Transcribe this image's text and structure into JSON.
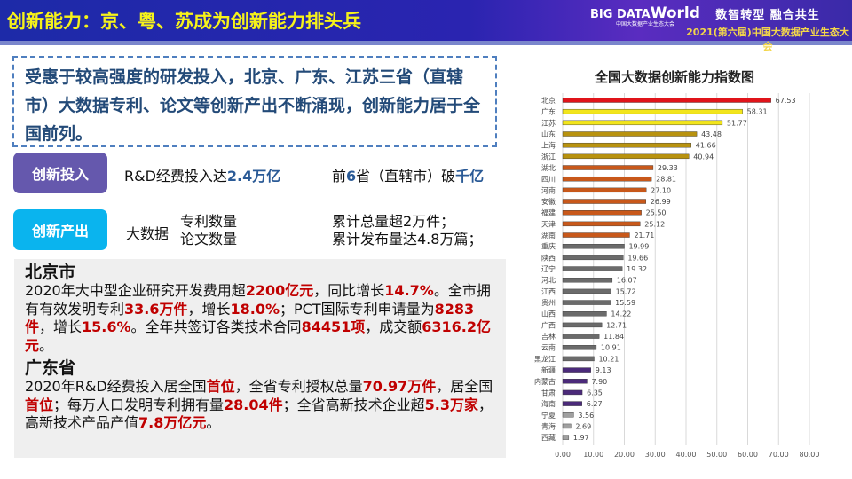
{
  "header": {
    "title": "创新能力：京、粤、苏成为创新能力排头兵",
    "logo_main": "BIG DATA",
    "logo_world": "World",
    "logo_sub": "中国大数据产业生态大会",
    "slogan": "数智转型 融合共生",
    "event": "2021(第六届)中国大数据产业生态大会"
  },
  "summary": "受惠于较高强度的研发投入，北京、广东、江苏三省（直辖市）大数据专利、论文等创新产出不断涌现，创新能力居于全国前列。",
  "input": {
    "label": "创新投入",
    "text1_a": "R&D经费投入达",
    "text1_b": "2.4万亿",
    "text2_a": "前",
    "text2_b": "6",
    "text2_c": "省（直辖市）破",
    "text2_d": "千亿"
  },
  "output": {
    "label": "创新产出",
    "prefix": "大数据",
    "item1": "专利数量",
    "item2": "论文数量",
    "val1": "累计总量超2万件；",
    "val2": "累计发布量达4.8万篇；"
  },
  "detail": {
    "beijing_title": "北京市",
    "beijing": [
      {
        "t": "2020年大中型企业研究开发费用超"
      },
      {
        "t": "2200亿元",
        "hl": true
      },
      {
        "t": "，同比增长"
      },
      {
        "t": "14.7%",
        "hl": true
      },
      {
        "t": "。全市拥有有效发明专利"
      },
      {
        "t": "33.6万件",
        "hl": true
      },
      {
        "t": "，增长"
      },
      {
        "t": "18.0%",
        "hl": true
      },
      {
        "t": "；PCT国际专利申请量为"
      },
      {
        "t": "8283件",
        "hl": true
      },
      {
        "t": "，增长"
      },
      {
        "t": "15.6%",
        "hl": true
      },
      {
        "t": "。全年共签订各类技术合同"
      },
      {
        "t": "84451项",
        "hl": true
      },
      {
        "t": "，成交额"
      },
      {
        "t": "6316.2亿元",
        "hl": true
      },
      {
        "t": "。"
      }
    ],
    "guangdong_title": "广东省",
    "guangdong": [
      {
        "t": "2020年R&D经费投入居全国"
      },
      {
        "t": "首位",
        "hl": true
      },
      {
        "t": "，全省专利授权总量"
      },
      {
        "t": "70.97万件",
        "hl": true
      },
      {
        "t": "，居全国"
      },
      {
        "t": "首位",
        "hl": true
      },
      {
        "t": "；每万人口发明专利拥有量"
      },
      {
        "t": "28.04件",
        "hl": true
      },
      {
        "t": "；全省高新技术企业超"
      },
      {
        "t": "5.3万家",
        "hl": true
      },
      {
        "t": "，高新技术产品产值"
      },
      {
        "t": "7.8万亿元",
        "hl": true
      },
      {
        "t": "。"
      }
    ]
  },
  "chart_data": {
    "type": "bar",
    "orientation": "horizontal",
    "title": "全国大数据创新能力指数图",
    "categories": [
      "北京",
      "广东",
      "江苏",
      "山东",
      "上海",
      "浙江",
      "湖北",
      "四川",
      "河南",
      "安徽",
      "福建",
      "天津",
      "湖南",
      "重庆",
      "陕西",
      "辽宁",
      "河北",
      "江西",
      "贵州",
      "山西",
      "广西",
      "吉林",
      "云南",
      "黑龙江",
      "新疆",
      "内蒙古",
      "甘肃",
      "海南",
      "宁夏",
      "青海",
      "西藏"
    ],
    "values": [
      67.53,
      58.31,
      51.77,
      43.48,
      41.66,
      40.94,
      29.33,
      28.81,
      27.1,
      26.99,
      25.5,
      25.12,
      21.71,
      19.99,
      19.66,
      19.32,
      16.07,
      15.72,
      15.59,
      14.22,
      12.71,
      11.84,
      10.91,
      10.21,
      9.13,
      7.9,
      6.35,
      6.27,
      3.56,
      2.69,
      1.97
    ],
    "colors": [
      "#e0141a",
      "#f2e51c",
      "#f2e51c",
      "#b8920e",
      "#b8920e",
      "#b8920e",
      "#c8581a",
      "#c8581a",
      "#c8581a",
      "#c8581a",
      "#c8581a",
      "#c8581a",
      "#c8581a",
      "#6b6b6b",
      "#6b6b6b",
      "#6b6b6b",
      "#6b6b6b",
      "#6b6b6b",
      "#6b6b6b",
      "#6b6b6b",
      "#6b6b6b",
      "#6b6b6b",
      "#6b6b6b",
      "#6b6b6b",
      "#4b2a7a",
      "#4b2a7a",
      "#4b2a7a",
      "#4b2a7a",
      "#a0a0a0",
      "#a0a0a0",
      "#a0a0a0"
    ],
    "xlim": [
      0,
      80
    ],
    "xticks": [
      "0.00",
      "10.00",
      "20.00",
      "30.00",
      "40.00",
      "50.00",
      "60.00",
      "70.00",
      "80.00"
    ],
    "grid": true
  }
}
